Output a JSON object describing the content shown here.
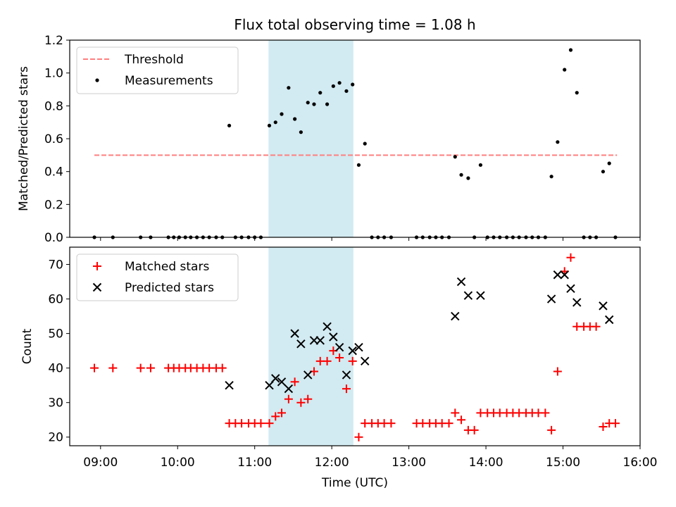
{
  "chart_data": [
    {
      "type": "scatter",
      "title": "Flux total observing time = 1.08 h",
      "ylabel": "Matched/Predicted stars",
      "xlabel": "",
      "xlim": [
        8.6,
        16.0
      ],
      "ylim": [
        0,
        1.2
      ],
      "yticks": [
        0,
        0.2,
        0.4,
        0.6,
        0.8,
        1.0,
        1.2
      ],
      "ytick_labels": [
        "0.0",
        "0.2",
        "0.4",
        "0.6",
        "0.8",
        "1.0",
        "1.2"
      ],
      "shaded_span": [
        11.18,
        12.28
      ],
      "shaded_color": "#add8e6",
      "threshold": {
        "name": "Threshold",
        "y": 0.5,
        "x_range": [
          8.92,
          15.7
        ],
        "color": "#ff7f7f"
      },
      "legend_position": "upper-left",
      "series": [
        {
          "name": "Measurements",
          "color": "#000000",
          "x": [
            8.92,
            9.16,
            9.52,
            9.65,
            9.88,
            9.95,
            10.02,
            10.1,
            10.17,
            10.25,
            10.33,
            10.41,
            10.5,
            10.58,
            10.67,
            10.75,
            10.83,
            10.92,
            11.0,
            11.08,
            11.19,
            11.27,
            11.35,
            11.44,
            11.52,
            11.6,
            11.69,
            11.77,
            11.85,
            11.94,
            12.02,
            12.1,
            12.19,
            12.27,
            12.35,
            12.43,
            12.52,
            12.6,
            12.68,
            12.77,
            13.1,
            13.18,
            13.27,
            13.35,
            13.43,
            13.52,
            13.6,
            13.68,
            13.77,
            13.85,
            13.93,
            14.02,
            14.1,
            14.18,
            14.27,
            14.35,
            14.43,
            14.52,
            14.6,
            14.68,
            14.77,
            14.85,
            14.93,
            15.02,
            15.1,
            15.18,
            15.27,
            15.35,
            15.43,
            15.52,
            15.6,
            15.68
          ],
          "y": [
            0,
            0,
            0,
            0,
            0,
            0,
            0,
            0,
            0,
            0,
            0,
            0,
            0,
            0,
            0.68,
            0,
            0,
            0,
            0,
            0,
            0.68,
            0.7,
            0.75,
            0.91,
            0.72,
            0.64,
            0.82,
            0.81,
            0.88,
            0.81,
            0.92,
            0.94,
            0.89,
            0.93,
            0.44,
            0.57,
            0,
            0,
            0,
            0,
            0,
            0,
            0,
            0,
            0,
            0,
            0.49,
            0.38,
            0.36,
            0,
            0.44,
            0,
            0,
            0,
            0,
            0,
            0,
            0,
            0,
            0,
            0,
            0.37,
            0.58,
            1.02,
            1.14,
            0.88,
            0,
            0,
            0,
            0.4,
            0.45,
            0
          ]
        }
      ]
    },
    {
      "type": "scatter",
      "title": "",
      "ylabel": "Count",
      "xlabel": "Time (UTC)",
      "xlim": [
        8.6,
        16.0
      ],
      "ylim": [
        17.5,
        75
      ],
      "yticks": [
        20,
        30,
        40,
        50,
        60,
        70
      ],
      "ytick_labels": [
        "20",
        "30",
        "40",
        "50",
        "60",
        "70"
      ],
      "xticks": [
        9,
        10,
        11,
        12,
        13,
        14,
        15,
        16
      ],
      "xtick_labels": [
        "09:00",
        "10:00",
        "11:00",
        "12:00",
        "13:00",
        "14:00",
        "15:00",
        "16:00"
      ],
      "shaded_span": [
        11.18,
        12.28
      ],
      "shaded_color": "#add8e6",
      "legend_position": "upper-left",
      "series": [
        {
          "name": "Matched stars",
          "marker": "plus",
          "color": "#ff0000",
          "x": [
            8.92,
            9.16,
            9.52,
            9.65,
            9.88,
            9.95,
            10.02,
            10.1,
            10.17,
            10.25,
            10.33,
            10.41,
            10.5,
            10.58,
            10.67,
            10.75,
            10.83,
            10.92,
            11.0,
            11.08,
            11.19,
            11.27,
            11.35,
            11.44,
            11.52,
            11.6,
            11.69,
            11.77,
            11.85,
            11.94,
            12.02,
            12.1,
            12.19,
            12.27,
            12.35,
            12.43,
            12.52,
            12.6,
            12.68,
            12.77,
            13.1,
            13.18,
            13.27,
            13.35,
            13.43,
            13.52,
            13.6,
            13.68,
            13.77,
            13.85,
            13.93,
            14.02,
            14.1,
            14.18,
            14.27,
            14.35,
            14.43,
            14.52,
            14.6,
            14.68,
            14.77,
            14.85,
            14.93,
            15.02,
            15.1,
            15.18,
            15.27,
            15.35,
            15.43,
            15.52,
            15.6,
            15.68
          ],
          "y": [
            40,
            40,
            40,
            40,
            40,
            40,
            40,
            40,
            40,
            40,
            40,
            40,
            40,
            40,
            24,
            24,
            24,
            24,
            24,
            24,
            24,
            26,
            27,
            31,
            36,
            30,
            31,
            39,
            42,
            42,
            45,
            43,
            34,
            42,
            20,
            24,
            24,
            24,
            24,
            24,
            24,
            24,
            24,
            24,
            24,
            24,
            27,
            25,
            22,
            22,
            27,
            27,
            27,
            27,
            27,
            27,
            27,
            27,
            27,
            27,
            27,
            22,
            39,
            68,
            72,
            52,
            52,
            52,
            52,
            23,
            24,
            24
          ]
        },
        {
          "name": "Predicted stars",
          "marker": "x",
          "color": "#000000",
          "x": [
            10.67,
            11.19,
            11.27,
            11.35,
            11.44,
            11.52,
            11.6,
            11.69,
            11.77,
            11.85,
            11.94,
            12.02,
            12.1,
            12.19,
            12.27,
            12.35,
            12.43,
            13.6,
            13.68,
            13.77,
            13.93,
            14.85,
            14.93,
            15.02,
            15.1,
            15.18,
            15.52,
            15.6
          ],
          "y": [
            35,
            35,
            37,
            36,
            34,
            50,
            47,
            38,
            48,
            48,
            52,
            49,
            46,
            38,
            45,
            46,
            42,
            55,
            65,
            61,
            61,
            60,
            67,
            67,
            63,
            59,
            58,
            54
          ]
        }
      ]
    }
  ]
}
